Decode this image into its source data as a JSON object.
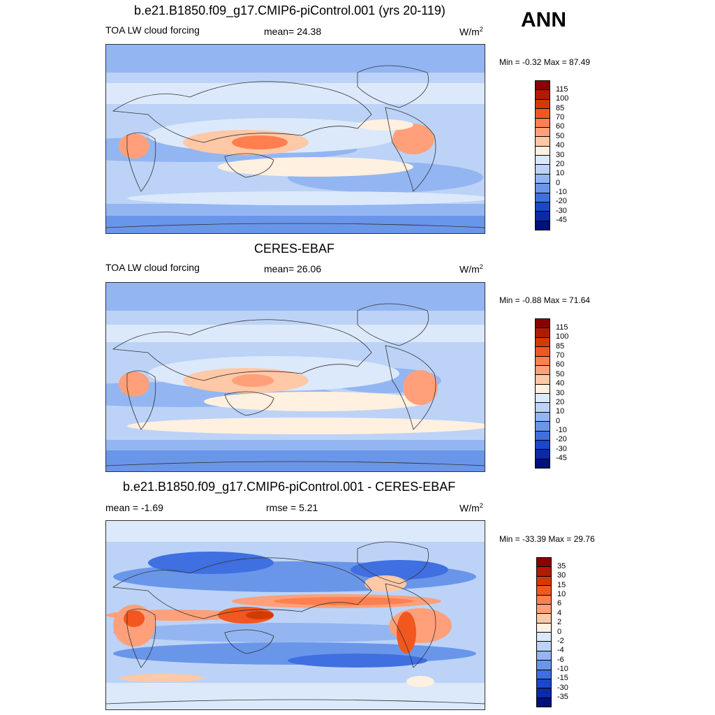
{
  "season_label": "ANN",
  "panels": [
    {
      "title": "b.e21.B1850.f09_g17.CMIP6-piControl.001 (yrs 20-119)",
      "left_label": "TOA LW cloud forcing",
      "center_label": "mean=  24.38",
      "units_base": "W/m",
      "units_exp": "2",
      "minmax": "Min =  -0.32 Max =  87.49"
    },
    {
      "title": "CERES-EBAF",
      "left_label": "TOA LW cloud forcing",
      "center_label": "mean=  26.06",
      "units_base": "W/m",
      "units_exp": "2",
      "minmax": "Min =  -0.88 Max =  71.64"
    },
    {
      "title": "b.e21.B1850.f09_g17.CMIP6-piControl.001 - CERES-EBAF",
      "left_label": "mean =  -1.69",
      "center_label": "rmse =   5.21",
      "units_base": "W/m",
      "units_exp": "2",
      "minmax": "Min = -33.39 Max =  29.76"
    }
  ],
  "colorbars": {
    "abs": {
      "colors": [
        "#8b0000",
        "#b01c00",
        "#d43a00",
        "#f2571f",
        "#ff7f50",
        "#ffa07a",
        "#ffc8a6",
        "#fff0e0",
        "#dce9fb",
        "#bcd3f7",
        "#93b6f2",
        "#6a96ea",
        "#3f6fe0",
        "#1a47cc",
        "#0a2aa8",
        "#00127a"
      ],
      "labels": [
        "115",
        "100",
        "85",
        "70",
        "60",
        "50",
        "40",
        "30",
        "20",
        "10",
        "0",
        "-10",
        "-20",
        "-30",
        "-45"
      ]
    },
    "diff": {
      "colors": [
        "#8b0000",
        "#b01c00",
        "#d43a00",
        "#f2571f",
        "#ff7f50",
        "#ffa07a",
        "#ffc8a6",
        "#fff0e0",
        "#dce9fb",
        "#bcd3f7",
        "#93b6f2",
        "#6a96ea",
        "#3f6fe0",
        "#1a47cc",
        "#0a2aa8",
        "#00127a"
      ],
      "labels": [
        "35",
        "30",
        "15",
        "10",
        "6",
        "4",
        "2",
        "0",
        "-2",
        "-4",
        "-6",
        "-10",
        "-15",
        "-30",
        "-35"
      ]
    }
  }
}
